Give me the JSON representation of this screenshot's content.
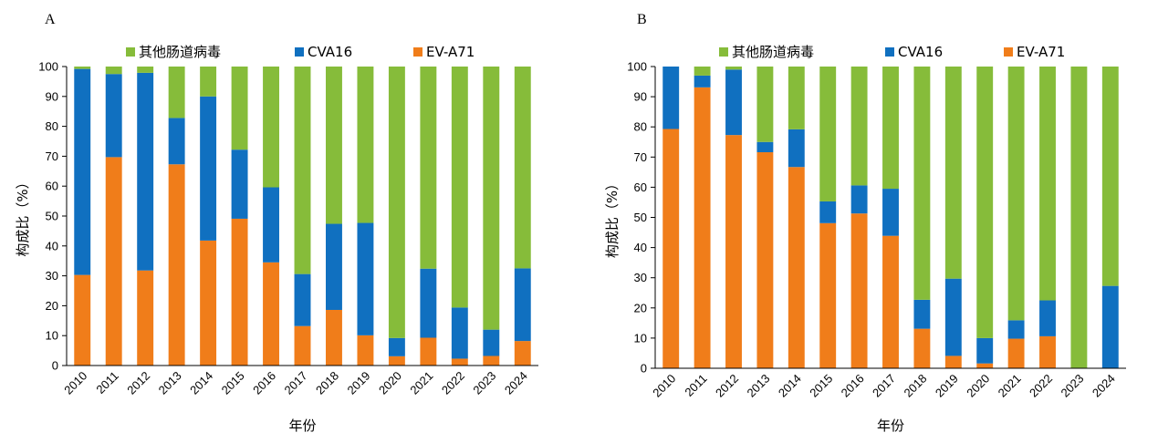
{
  "chart_data": [
    {
      "type": "bar",
      "stacked": true,
      "panel_label": "A",
      "xlabel": "年份",
      "ylabel": "构成比（%）",
      "ylim": [
        0,
        100
      ],
      "yticks": [
        0,
        10,
        20,
        30,
        40,
        50,
        60,
        70,
        80,
        90,
        100
      ],
      "grid": false,
      "legend_position": "top",
      "categories": [
        "2010",
        "2011",
        "2012",
        "2013",
        "2014",
        "2015",
        "2016",
        "2017",
        "2018",
        "2019",
        "2020",
        "2021",
        "2022",
        "2023",
        "2024"
      ],
      "legend_order": [
        "其他肠道病毒",
        "CVA16",
        "EV-A71"
      ],
      "series": [
        {
          "name": "EV-A71",
          "color": "#F07D1A",
          "values": [
            30.3,
            69.7,
            31.8,
            67.3,
            41.8,
            49.1,
            34.5,
            13.2,
            18.6,
            10.1,
            3.1,
            9.3,
            2.3,
            3.2,
            8.2
          ]
        },
        {
          "name": "CVA16",
          "color": "#1070C0",
          "values": [
            68.9,
            27.8,
            66.1,
            15.5,
            48.2,
            23.1,
            25.1,
            17.4,
            28.8,
            37.6,
            6.1,
            23.1,
            17.1,
            8.8,
            24.3
          ]
        },
        {
          "name": "其他肠道病毒",
          "color": "#86BC3A",
          "values": [
            0.8,
            2.5,
            2.1,
            17.2,
            10.0,
            27.8,
            40.4,
            69.4,
            52.6,
            52.3,
            90.8,
            67.6,
            80.6,
            88.0,
            67.5
          ]
        }
      ]
    },
    {
      "type": "bar",
      "stacked": true,
      "panel_label": "B",
      "xlabel": "年份",
      "ylabel": "构成比（%）",
      "ylim": [
        0,
        100
      ],
      "yticks": [
        0,
        10,
        20,
        30,
        40,
        50,
        60,
        70,
        80,
        90,
        100
      ],
      "grid": false,
      "legend_position": "top",
      "categories": [
        "2010",
        "2011",
        "2012",
        "2013",
        "2014",
        "2015",
        "2016",
        "2017",
        "2018",
        "2019",
        "2020",
        "2021",
        "2022",
        "2023",
        "2024"
      ],
      "legend_order": [
        "其他肠道病毒",
        "CVA16",
        "EV-A71"
      ],
      "series": [
        {
          "name": "EV-A71",
          "color": "#F07D1A",
          "values": [
            79.3,
            93.1,
            77.3,
            71.6,
            66.7,
            48.1,
            51.3,
            43.9,
            13.1,
            4.1,
            1.6,
            9.8,
            10.6,
            0,
            0
          ]
        },
        {
          "name": "CVA16",
          "color": "#1070C0",
          "values": [
            20.7,
            3.9,
            21.7,
            3.4,
            12.5,
            7.2,
            9.3,
            15.6,
            9.6,
            25.6,
            8.4,
            6.1,
            11.9,
            0,
            27.3
          ]
        },
        {
          "name": "其他肠道病毒",
          "color": "#86BC3A",
          "values": [
            0,
            3.0,
            1.0,
            25.0,
            20.8,
            44.7,
            39.4,
            40.5,
            77.3,
            70.3,
            90.0,
            84.1,
            77.5,
            100,
            72.7
          ]
        }
      ]
    }
  ]
}
